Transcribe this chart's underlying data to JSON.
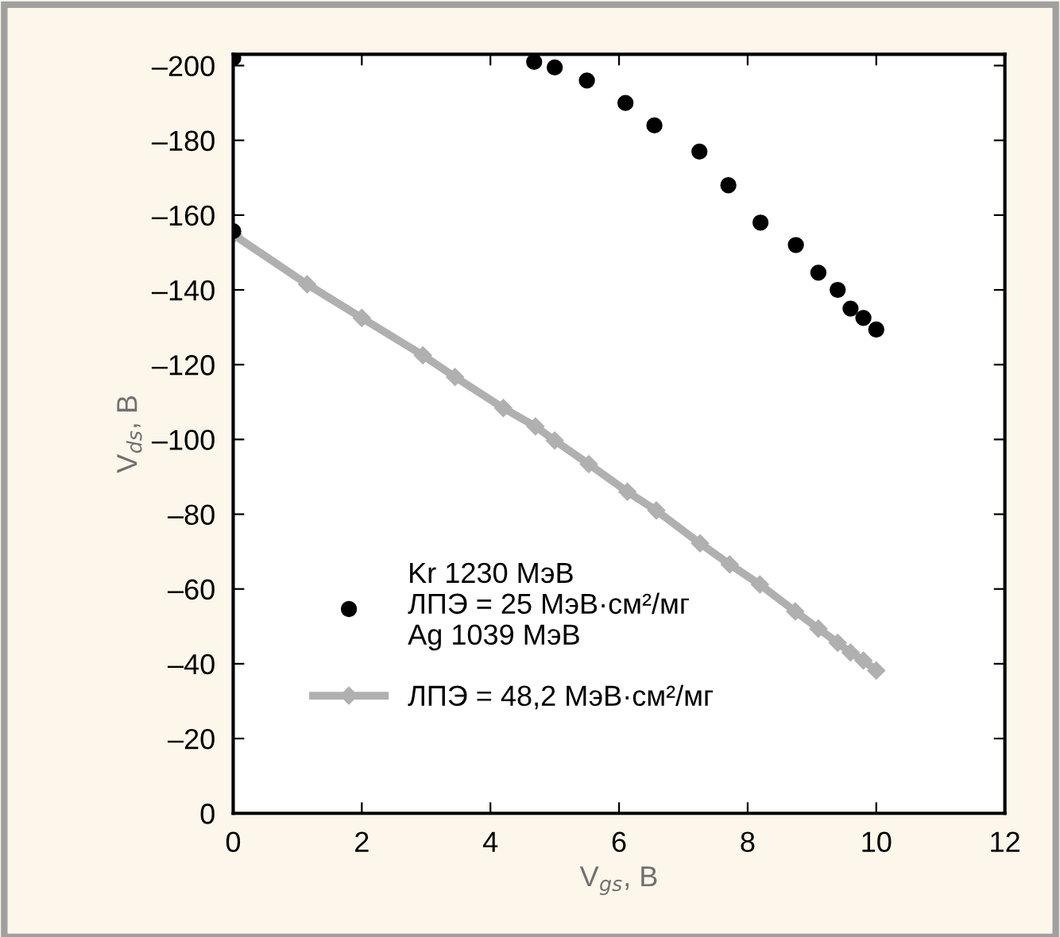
{
  "chart_data": {
    "type": "scatter",
    "xlabel": "V$_{gs}$, В",
    "ylabel": "V$_{ds}$, В",
    "xlim": [
      0,
      12
    ],
    "xticks": [
      0,
      2,
      4,
      6,
      8,
      10,
      12
    ],
    "ylim": [
      0,
      -203
    ],
    "yticks": [
      0,
      {
        "value": -20,
        "label": "–20"
      },
      {
        "value": -40,
        "label": "–40"
      },
      {
        "value": -60,
        "label": "–60"
      },
      {
        "value": -80,
        "label": "–80"
      },
      {
        "value": -100,
        "label": "–100"
      },
      {
        "value": -120,
        "label": "–120"
      },
      {
        "value": -140,
        "label": "–140"
      },
      {
        "value": -160,
        "label": "–160"
      },
      {
        "value": -180,
        "label": "–180"
      },
      {
        "value": -200,
        "label": "–200"
      }
    ],
    "grid": false,
    "legend": "bottom left",
    "series": [
      {
        "name": "Kr 1230 МэВ\nЛПЭ = 25 МэВ·см²/мг\nAg 1039 МэВ",
        "marker": "circle",
        "color": "#000000",
        "x": [
          0,
          0,
          4.68,
          5.0,
          5.5,
          6.1,
          6.55,
          7.25,
          7.7,
          8.2,
          8.75,
          9.1,
          9.4,
          9.6,
          9.8,
          10.0
        ],
        "values": [
          -202,
          -155.7,
          -201,
          -199.5,
          -196,
          -190,
          -184,
          -177,
          -168,
          -158,
          -152,
          -144.6,
          -140,
          -135,
          -132.5,
          -129.4
        ]
      },
      {
        "name": "ЛПЭ = 48,2 МэВ·см²/мг",
        "type": "line",
        "marker": "diamond",
        "line_style": "solid",
        "color": "#b0b0b0",
        "x": [
          0,
          1.15,
          2.0,
          2.95,
          3.45,
          4.2,
          4.7,
          5.0,
          5.53,
          6.13,
          6.58,
          7.26,
          7.72,
          8.19,
          8.74,
          9.1,
          9.4,
          9.6,
          9.8,
          10.0
        ],
        "values": [
          -154.8,
          -141.5,
          -132.5,
          -122.5,
          -116.7,
          -108.4,
          -103.5,
          -99.7,
          -93.4,
          -86,
          -81,
          -72.2,
          -66.6,
          -61.2,
          -54,
          -49.4,
          -45.6,
          -43,
          -40.9,
          -38.2
        ]
      }
    ]
  }
}
